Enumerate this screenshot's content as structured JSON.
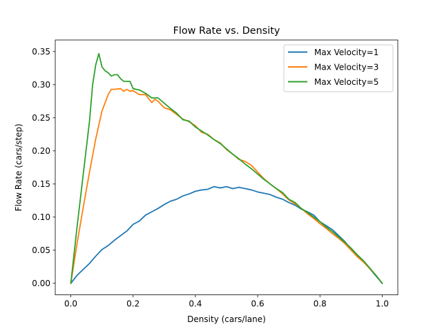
{
  "chart_data": {
    "type": "line",
    "title": "Flow Rate vs. Density",
    "xlabel": "Density (cars/lane)",
    "ylabel": "Flow Rate (cars/step)",
    "xlim": [
      -0.05,
      1.05
    ],
    "ylim": [
      -0.0175,
      0.3675
    ],
    "xticks": [
      0.0,
      0.2,
      0.4,
      0.6,
      0.8,
      1.0
    ],
    "xtick_labels": [
      "0.0",
      "0.2",
      "0.4",
      "0.6",
      "0.8",
      "1.0"
    ],
    "yticks": [
      0.0,
      0.05,
      0.1,
      0.15,
      0.2,
      0.25,
      0.3,
      0.35
    ],
    "ytick_labels": [
      "0.00",
      "0.05",
      "0.10",
      "0.15",
      "0.20",
      "0.25",
      "0.30",
      "0.35"
    ],
    "grid": false,
    "legend_position": "top-right",
    "series": [
      {
        "name": "Max Velocity=1",
        "color": "#1f77b4",
        "x": [
          0.0,
          0.02,
          0.04,
          0.06,
          0.08,
          0.1,
          0.12,
          0.14,
          0.16,
          0.18,
          0.2,
          0.22,
          0.24,
          0.26,
          0.28,
          0.3,
          0.32,
          0.34,
          0.36,
          0.38,
          0.4,
          0.42,
          0.44,
          0.46,
          0.48,
          0.5,
          0.52,
          0.54,
          0.56,
          0.58,
          0.6,
          0.62,
          0.64,
          0.66,
          0.68,
          0.7,
          0.72,
          0.74,
          0.76,
          0.78,
          0.8,
          0.82,
          0.84,
          0.86,
          0.88,
          0.9,
          0.92,
          0.94,
          0.96,
          0.98,
          1.0
        ],
        "y": [
          0.0,
          0.012,
          0.021,
          0.03,
          0.041,
          0.051,
          0.057,
          0.065,
          0.072,
          0.079,
          0.089,
          0.094,
          0.103,
          0.108,
          0.113,
          0.119,
          0.124,
          0.127,
          0.132,
          0.135,
          0.139,
          0.141,
          0.142,
          0.146,
          0.144,
          0.146,
          0.143,
          0.145,
          0.143,
          0.141,
          0.138,
          0.136,
          0.134,
          0.13,
          0.127,
          0.122,
          0.118,
          0.112,
          0.108,
          0.103,
          0.093,
          0.087,
          0.081,
          0.072,
          0.063,
          0.051,
          0.042,
          0.033,
          0.022,
          0.011,
          0.0
        ]
      },
      {
        "name": "Max Velocity=3",
        "color": "#ff7f0e",
        "x": [
          0.0,
          0.02,
          0.04,
          0.06,
          0.08,
          0.1,
          0.12,
          0.13,
          0.14,
          0.16,
          0.17,
          0.18,
          0.19,
          0.2,
          0.22,
          0.24,
          0.26,
          0.27,
          0.28,
          0.3,
          0.32,
          0.34,
          0.36,
          0.38,
          0.4,
          0.42,
          0.44,
          0.46,
          0.48,
          0.5,
          0.52,
          0.54,
          0.56,
          0.58,
          0.6,
          0.62,
          0.64,
          0.66,
          0.68,
          0.7,
          0.72,
          0.74,
          0.76,
          0.78,
          0.8,
          0.82,
          0.84,
          0.86,
          0.88,
          0.9,
          0.92,
          0.94,
          0.96,
          0.98,
          1.0
        ],
        "y": [
          0.0,
          0.06,
          0.115,
          0.168,
          0.218,
          0.26,
          0.285,
          0.293,
          0.293,
          0.294,
          0.29,
          0.293,
          0.29,
          0.291,
          0.285,
          0.285,
          0.273,
          0.278,
          0.275,
          0.265,
          0.262,
          0.255,
          0.248,
          0.244,
          0.238,
          0.228,
          0.225,
          0.217,
          0.212,
          0.202,
          0.195,
          0.187,
          0.184,
          0.178,
          0.168,
          0.158,
          0.15,
          0.143,
          0.135,
          0.126,
          0.12,
          0.113,
          0.105,
          0.098,
          0.09,
          0.083,
          0.075,
          0.068,
          0.06,
          0.05,
          0.04,
          0.032,
          0.022,
          0.012,
          0.0
        ]
      },
      {
        "name": "Max Velocity=5",
        "color": "#2ca02c",
        "x": [
          0.0,
          0.02,
          0.04,
          0.06,
          0.07,
          0.08,
          0.09,
          0.1,
          0.11,
          0.12,
          0.13,
          0.14,
          0.15,
          0.16,
          0.17,
          0.18,
          0.19,
          0.2,
          0.22,
          0.24,
          0.26,
          0.28,
          0.3,
          0.32,
          0.34,
          0.36,
          0.38,
          0.4,
          0.42,
          0.44,
          0.46,
          0.48,
          0.5,
          0.52,
          0.54,
          0.56,
          0.58,
          0.6,
          0.62,
          0.64,
          0.66,
          0.68,
          0.7,
          0.72,
          0.74,
          0.76,
          0.78,
          0.8,
          0.82,
          0.84,
          0.86,
          0.88,
          0.9,
          0.92,
          0.94,
          0.96,
          0.98,
          1.0
        ],
        "y": [
          0.0,
          0.085,
          0.165,
          0.245,
          0.3,
          0.33,
          0.347,
          0.327,
          0.321,
          0.318,
          0.313,
          0.315,
          0.315,
          0.309,
          0.305,
          0.305,
          0.305,
          0.294,
          0.292,
          0.287,
          0.28,
          0.28,
          0.272,
          0.264,
          0.257,
          0.247,
          0.245,
          0.236,
          0.23,
          0.224,
          0.217,
          0.211,
          0.203,
          0.195,
          0.188,
          0.18,
          0.173,
          0.165,
          0.157,
          0.15,
          0.143,
          0.137,
          0.127,
          0.122,
          0.113,
          0.107,
          0.1,
          0.093,
          0.085,
          0.078,
          0.07,
          0.062,
          0.053,
          0.043,
          0.034,
          0.023,
          0.012,
          0.0
        ]
      }
    ]
  }
}
